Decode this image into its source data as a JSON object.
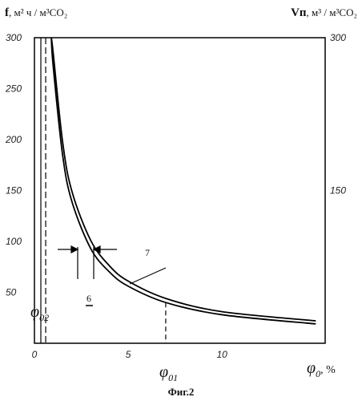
{
  "chart_data": {
    "type": "line",
    "caption": "Фиг.2",
    "y_left_label": {
      "symbol": "f",
      "units": ", м² ч / м³CO₂"
    },
    "y_right_label": {
      "symbol": "Vп",
      "units": ", м³ / м³CO₂"
    },
    "x_label": {
      "symbol": "φ",
      "subscript": "0",
      "units": ", %"
    },
    "xlim": [
      0,
      15.5
    ],
    "ylim": [
      0,
      300
    ],
    "x_ticks": [
      0,
      5,
      10
    ],
    "y_left_ticks": [
      50,
      100,
      150,
      200,
      250,
      300
    ],
    "y_right_ticks": [
      150,
      300
    ],
    "series": [
      {
        "label": "6",
        "x": [
          0.9,
          1.0,
          1.5,
          2.0,
          3.0,
          4.0,
          5.0,
          7.0,
          10.0,
          15.0
        ],
        "y": [
          300,
          272,
          185,
          139,
          93,
          70,
          56,
          40,
          28,
          19
        ]
      },
      {
        "label": "7",
        "x": [
          0.9,
          1.0,
          1.5,
          2.0,
          3.0,
          4.0,
          5.0,
          7.0,
          10.0,
          15.0
        ],
        "y": [
          300,
          285,
          198,
          149,
          101,
          76,
          61,
          44,
          31,
          22
        ]
      }
    ],
    "annotations": {
      "phi_01": {
        "symbol": "φ",
        "subscript": "01",
        "x": 7.0
      },
      "phi_02": {
        "symbol": "φ",
        "subscript": "02",
        "x": 0.6
      }
    }
  }
}
